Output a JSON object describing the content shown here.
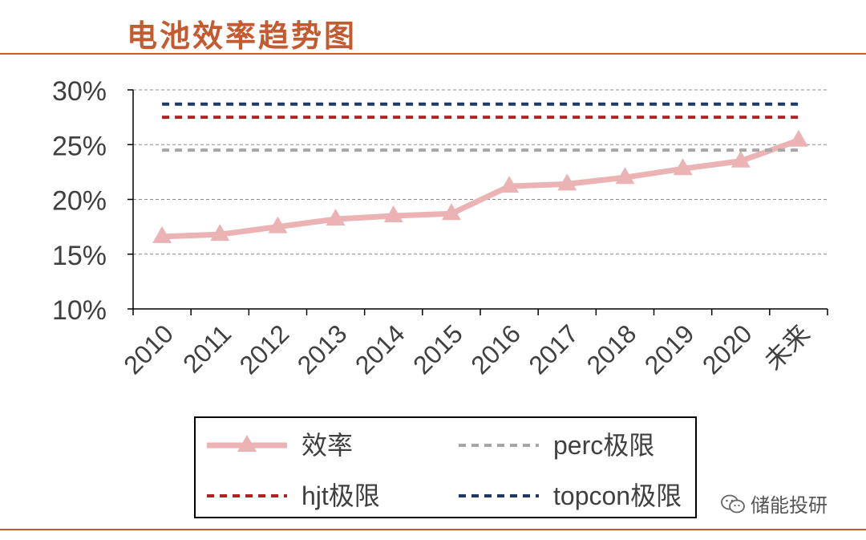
{
  "title": "电池效率趋势图",
  "watermark": {
    "text": "储能投研",
    "icon": "wechat-icon"
  },
  "colors": {
    "title": "#C45A30",
    "efficiency": "#EBB3B4",
    "perc": "#A6A6A6",
    "hjt": "#B22025",
    "topcon": "#1F3864",
    "grid": "#8C8C8C",
    "axis": "#000000"
  },
  "chart_data": {
    "type": "line",
    "title": "电池效率趋势图",
    "xlabel": "",
    "ylabel": "",
    "categories": [
      "2010",
      "2011",
      "2012",
      "2013",
      "2014",
      "2015",
      "2016",
      "2017",
      "2018",
      "2019",
      "2020",
      "未来"
    ],
    "ylim": [
      0.1,
      0.3
    ],
    "yticks": [
      "10%",
      "15%",
      "20%",
      "25%",
      "30%"
    ],
    "grid": true,
    "legend_position": "bottom",
    "series": [
      {
        "name": "效率",
        "style": "solid-triangle",
        "color": "#EBB3B4",
        "values": [
          0.166,
          0.168,
          0.175,
          0.182,
          0.185,
          0.187,
          0.212,
          0.214,
          0.22,
          0.228,
          0.235,
          0.254
        ]
      },
      {
        "name": "perc极限",
        "style": "dashed",
        "color": "#A6A6A6",
        "values": [
          0.245,
          0.245,
          0.245,
          0.245,
          0.245,
          0.245,
          0.245,
          0.245,
          0.245,
          0.245,
          0.245,
          0.245
        ]
      },
      {
        "name": "hjt极限",
        "style": "dashed",
        "color": "#B22025",
        "values": [
          0.275,
          0.275,
          0.275,
          0.275,
          0.275,
          0.275,
          0.275,
          0.275,
          0.275,
          0.275,
          0.275,
          0.275
        ]
      },
      {
        "name": "topcon极限",
        "style": "dashed",
        "color": "#1F3864",
        "values": [
          0.287,
          0.287,
          0.287,
          0.287,
          0.287,
          0.287,
          0.287,
          0.287,
          0.287,
          0.287,
          0.287,
          0.287
        ]
      }
    ]
  }
}
